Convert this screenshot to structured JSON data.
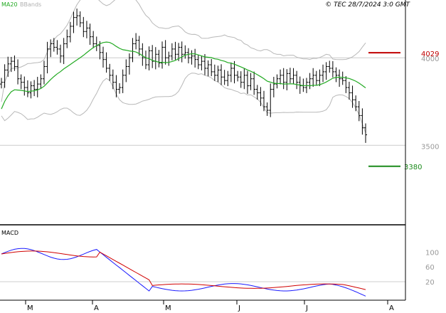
{
  "header": {
    "ma_label": "MA20",
    "bb_label": "BBands",
    "copyright": "© TEC 28/7/2024 3:0 GMT"
  },
  "macd_panel": {
    "label": "MACD"
  },
  "chart_data": {
    "type": "line",
    "price_axis": {
      "ticks": [
        3500,
        4000
      ],
      "tick_labels": [
        "3500",
        "4000"
      ],
      "ylim": [
        3050,
        4330
      ],
      "grid_at": [
        3500,
        4000
      ]
    },
    "macd_axis": {
      "ticks": [
        20,
        60,
        100
      ],
      "tick_labels": [
        "20",
        "60",
        "100"
      ],
      "ylim": [
        -30,
        170
      ],
      "grid_at": [
        20
      ]
    },
    "x_axis": {
      "months": [
        "M",
        "A",
        "M",
        "J",
        "J",
        "A"
      ],
      "month_positions": [
        0,
        22,
        44,
        66,
        88,
        110
      ]
    },
    "levels": [
      {
        "name": "resistance",
        "value": 4029,
        "label": "4029",
        "color": "#c00000"
      },
      {
        "name": "support",
        "value": 3380,
        "label": "3380",
        "color": "#1a8a1a"
      }
    ],
    "series": [
      {
        "name": "MA20",
        "color": "#22aa22"
      },
      {
        "name": "BBands",
        "color": "#b0b0b0"
      },
      {
        "name": "MACD",
        "color": "#1a1aff"
      },
      {
        "name": "Signal",
        "color": "#d00000"
      }
    ],
    "colors": {
      "candle": "#000000",
      "grid": "#cccccc",
      "axis": "#000000",
      "level_label": "#c00000",
      "tick_label": "#999999"
    }
  }
}
